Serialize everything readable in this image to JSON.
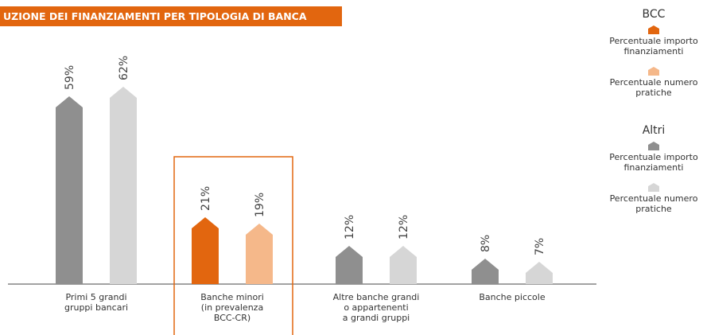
{
  "chart_data": {
    "type": "bar",
    "title": "UZIONE DEI FINANZIAMENTI PER TIPOLOGIA DI BANCA",
    "categories": [
      "Primi 5 grandi\ngruppi bancari",
      "Banche minori\n(in prevalenza\nBCC-CR)",
      "Altre banche grandi\no appartenenti\na grandi gruppi",
      "Banche piccole"
    ],
    "series": [
      {
        "name": "Percentuale importo finanziamenti",
        "colors": [
          "#8f8f8f",
          "#e2660f",
          "#8f8f8f",
          "#8f8f8f"
        ],
        "values": [
          59,
          21,
          12,
          8
        ],
        "value_labels": [
          "59%",
          "21%",
          "12%",
          "8%"
        ]
      },
      {
        "name": "Percentuale numero pratiche",
        "colors": [
          "#d6d6d6",
          "#f5b88a",
          "#d6d6d6",
          "#d6d6d6"
        ],
        "values": [
          62,
          19,
          12,
          7
        ],
        "value_labels": [
          "62%",
          "19%",
          "12%",
          "7%"
        ]
      }
    ],
    "legend": [
      {
        "title": "BCC",
        "colors": [
          "#e2660f",
          "#f5b88a"
        ]
      },
      {
        "title": "Altri",
        "colors": [
          "#8f8f8f",
          "#d6d6d6"
        ]
      }
    ]
  }
}
